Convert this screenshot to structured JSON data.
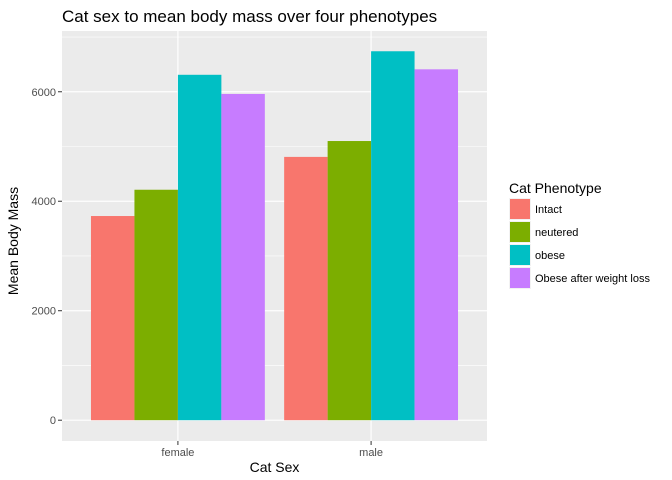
{
  "chart_data": {
    "type": "bar",
    "title": "Cat sex to mean body mass over four phenotypes",
    "xlabel": "Cat Sex",
    "ylabel": "Mean Body Mass",
    "categories": [
      "female",
      "male"
    ],
    "series": [
      {
        "name": "Intact",
        "values": [
          3730,
          4810
        ],
        "color": "#F8766D"
      },
      {
        "name": "neutered",
        "values": [
          4210,
          5100
        ],
        "color": "#7CAE00"
      },
      {
        "name": "obese",
        "values": [
          6310,
          6740
        ],
        "color": "#00BFC4"
      },
      {
        "name": "Obese after weight loss",
        "values": [
          5960,
          6410
        ],
        "color": "#C77CFF"
      }
    ],
    "ylim": [
      -380,
      7110
    ],
    "yticks": [
      0,
      2000,
      4000,
      6000
    ],
    "grid": true,
    "legend": {
      "title": "Cat Phenotype",
      "placement": "right"
    },
    "panel_background": "#EBEBEB"
  }
}
